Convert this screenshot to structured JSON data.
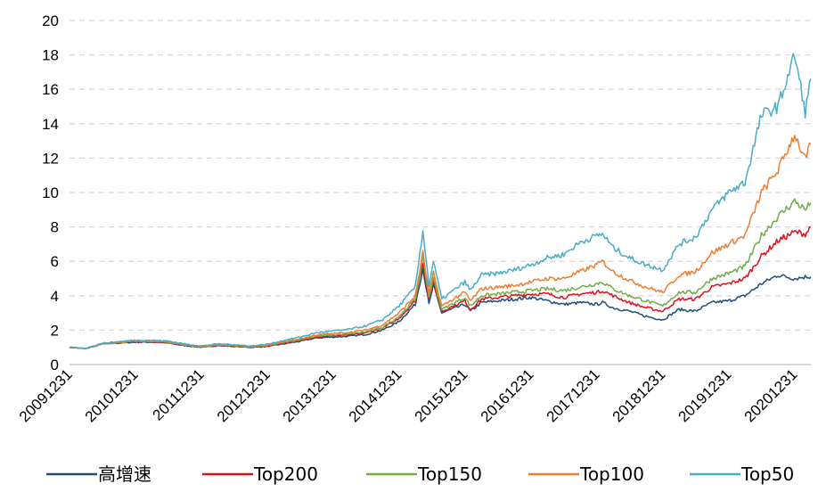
{
  "chart_data": {
    "type": "line",
    "title": "",
    "xlabel": "",
    "ylabel": "",
    "ylim": [
      0,
      20
    ],
    "yticks": [
      0,
      2,
      4,
      6,
      8,
      10,
      12,
      14,
      16,
      18,
      20
    ],
    "grid": "horizontal-dashed",
    "legend_position": "bottom",
    "x_tick_labels": [
      "20091231",
      "20101231",
      "20111231",
      "20121231",
      "20131231",
      "20141231",
      "20151231",
      "20161231",
      "20171231",
      "20181231",
      "20191231",
      "20201231"
    ],
    "x": [
      "20091231",
      "20100331",
      "20100630",
      "20100930",
      "20101231",
      "20110331",
      "20110630",
      "20110930",
      "20111231",
      "20120331",
      "20120630",
      "20120930",
      "20121231",
      "20130331",
      "20130630",
      "20130930",
      "20131231",
      "20140331",
      "20140630",
      "20140930",
      "20141231",
      "20150331",
      "20150512",
      "20150615",
      "20150709",
      "20150825",
      "20151231",
      "20160131",
      "20160331",
      "20160630",
      "20160930",
      "20161231",
      "20170331",
      "20170630",
      "20170930",
      "20171231",
      "20180131",
      "20180331",
      "20180630",
      "20180930",
      "20181231",
      "20190331",
      "20190630",
      "20190930",
      "20191231",
      "20200331",
      "20200630",
      "20200930",
      "20201231",
      "20210228",
      "20210331"
    ],
    "series": [
      {
        "name": "高增速",
        "color": "#1f4e79",
        "values": [
          1.0,
          0.92,
          1.2,
          1.25,
          1.3,
          1.3,
          1.25,
          1.1,
          1.0,
          1.1,
          1.05,
          1.0,
          1.05,
          1.2,
          1.35,
          1.55,
          1.6,
          1.65,
          1.75,
          2.0,
          2.5,
          3.5,
          5.6,
          3.5,
          4.6,
          3.0,
          3.5,
          3.1,
          3.6,
          3.7,
          3.8,
          3.9,
          3.7,
          3.5,
          3.6,
          3.5,
          3.6,
          3.3,
          3.1,
          2.8,
          2.6,
          3.2,
          3.1,
          3.6,
          3.7,
          4.0,
          4.7,
          5.2,
          5.0,
          5.1,
          5.1
        ]
      },
      {
        "name": "Top200",
        "color": "#e0101a",
        "values": [
          1.0,
          0.92,
          1.2,
          1.27,
          1.33,
          1.32,
          1.28,
          1.12,
          1.02,
          1.12,
          1.08,
          1.02,
          1.08,
          1.25,
          1.4,
          1.6,
          1.68,
          1.72,
          1.85,
          2.1,
          2.7,
          3.7,
          6.0,
          3.8,
          4.8,
          3.1,
          3.7,
          3.2,
          3.8,
          3.9,
          4.0,
          4.1,
          4.1,
          3.9,
          4.1,
          4.2,
          4.3,
          4.0,
          3.6,
          3.3,
          3.1,
          3.8,
          3.8,
          4.5,
          4.7,
          5.0,
          6.3,
          7.2,
          7.7,
          7.6,
          8.0
        ]
      },
      {
        "name": "Top150",
        "color": "#70ad47",
        "values": [
          1.0,
          0.93,
          1.2,
          1.28,
          1.35,
          1.34,
          1.3,
          1.14,
          1.03,
          1.14,
          1.1,
          1.03,
          1.1,
          1.28,
          1.45,
          1.65,
          1.72,
          1.78,
          1.9,
          2.15,
          2.8,
          3.8,
          6.2,
          3.9,
          5.0,
          3.2,
          3.9,
          3.4,
          4.0,
          4.1,
          4.2,
          4.3,
          4.4,
          4.3,
          4.5,
          4.7,
          4.8,
          4.4,
          4.0,
          3.7,
          3.4,
          4.2,
          4.2,
          5.0,
          5.3,
          5.7,
          7.5,
          8.6,
          9.5,
          9.0,
          9.4
        ]
      },
      {
        "name": "Top100",
        "color": "#ed7d31",
        "values": [
          1.0,
          0.93,
          1.22,
          1.3,
          1.38,
          1.37,
          1.33,
          1.16,
          1.05,
          1.16,
          1.12,
          1.05,
          1.13,
          1.32,
          1.5,
          1.72,
          1.8,
          1.88,
          2.0,
          2.3,
          3.0,
          4.0,
          6.5,
          4.1,
          5.3,
          3.4,
          4.2,
          3.7,
          4.4,
          4.5,
          4.6,
          4.8,
          5.0,
          5.0,
          5.4,
          5.8,
          6.0,
          5.4,
          4.9,
          4.5,
          4.2,
          5.2,
          5.4,
          6.5,
          7.0,
          7.5,
          10.0,
          11.3,
          13.4,
          11.9,
          12.8
        ]
      },
      {
        "name": "Top50",
        "color": "#4bacc6",
        "values": [
          1.0,
          0.94,
          1.24,
          1.33,
          1.42,
          1.41,
          1.37,
          1.2,
          1.08,
          1.2,
          1.16,
          1.08,
          1.18,
          1.4,
          1.6,
          1.85,
          1.95,
          2.05,
          2.25,
          2.6,
          3.4,
          4.5,
          7.8,
          4.6,
          6.0,
          3.8,
          4.8,
          4.3,
          5.2,
          5.3,
          5.5,
          5.8,
          6.2,
          6.4,
          7.1,
          7.5,
          7.6,
          6.8,
          6.2,
          5.8,
          5.5,
          7.0,
          7.4,
          9.0,
          10.0,
          10.6,
          14.5,
          15.0,
          18.0,
          14.7,
          16.6
        ]
      }
    ]
  }
}
